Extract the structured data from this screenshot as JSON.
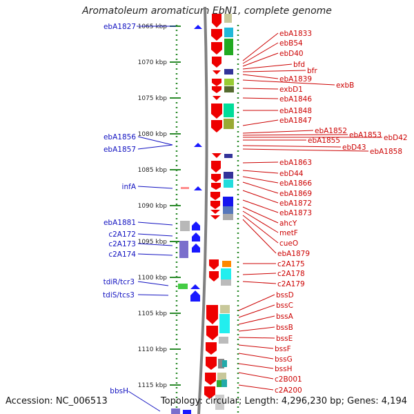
{
  "title": "Aromatoleum aromaticum EbN1, complete genome",
  "footer": {
    "accession": "Accession: NC_006513",
    "summary": "Topology: circular; Length: 4,296,230 bp; Genes: 4,194"
  },
  "colors": {
    "ruler": "#2a8a2a",
    "left_label": "#1010c0",
    "right_label": "#cc0000",
    "left_gene": "#0a0aff",
    "right_gene": "#ee0000",
    "backbone": "#808080"
  },
  "ruler_ticks": [
    {
      "label": "1065 kbp",
      "kbp": 1065
    },
    {
      "label": "1070 kbp",
      "kbp": 1070
    },
    {
      "label": "1075 kbp",
      "kbp": 1075
    },
    {
      "label": "1080 kbp",
      "kbp": 1080
    },
    {
      "label": "1085 kbp",
      "kbp": 1085
    },
    {
      "label": "1090 kbp",
      "kbp": 1090
    },
    {
      "label": "1095 kbp",
      "kbp": 1095
    },
    {
      "label": "1100 kbp",
      "kbp": 1100
    },
    {
      "label": "1105 kbp",
      "kbp": 1105
    },
    {
      "label": "1110 kbp",
      "kbp": 1110
    },
    {
      "label": "1115 kbp",
      "kbp": 1115
    }
  ],
  "left_labels": [
    "ebA1827",
    "ebA1856",
    "ebA1857",
    "infA",
    "ebA1881",
    "c2A172",
    "c2A173",
    "c2A174",
    "tdiR/tcr3",
    "tdiS/tcs3",
    "bbsH"
  ],
  "right_labels": [
    "ebA1833",
    "ebB54",
    "ebD40",
    "bfd",
    "bfr",
    "ebA1839",
    "exbB",
    "exbD1",
    "ebA1846",
    "ebA1848",
    "ebA1847",
    "ebA1852",
    "ebA1853",
    "ebD42",
    "ebA1855",
    "ebD43",
    "ebA1858",
    "ebA1863",
    "ebD44",
    "ebA1866",
    "ebA1869",
    "ebA1872",
    "ebA1873",
    "ahcY",
    "metF",
    "cueO",
    "ebA1879",
    "c2A175",
    "c2A178",
    "c2A179",
    "bssD",
    "bssC",
    "bssA",
    "bssB",
    "bssE",
    "bssF",
    "bssG",
    "bssH",
    "c2B001",
    "c2A200"
  ]
}
